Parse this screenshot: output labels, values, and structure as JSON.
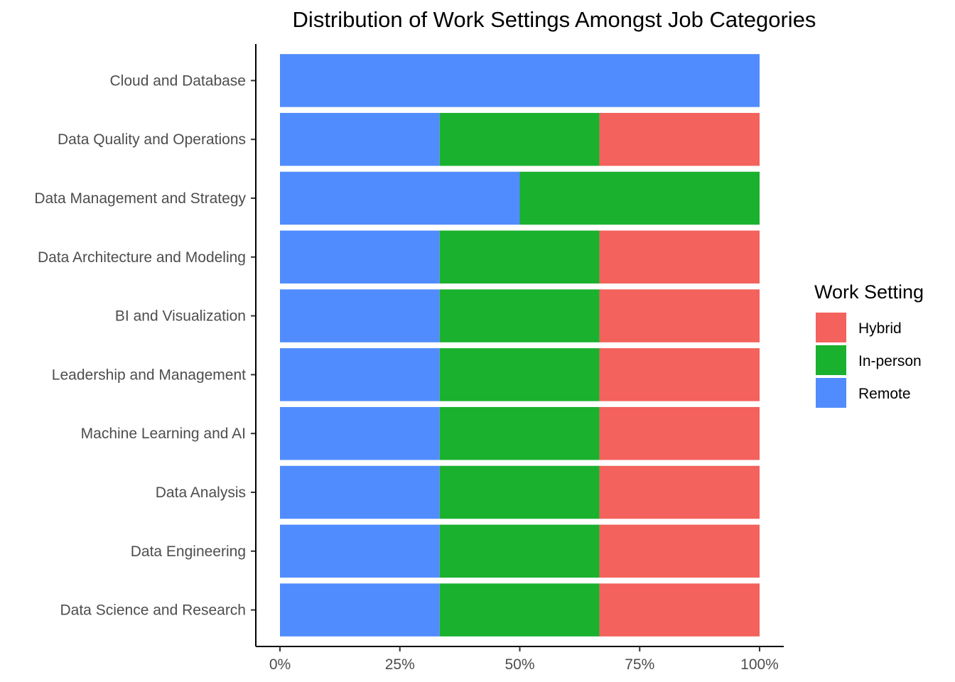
{
  "chart_data": {
    "type": "bar",
    "orientation": "horizontal",
    "stacked": "percent",
    "title": "Distribution of Work Settings Amongst Job Categories",
    "xlabel": "",
    "ylabel": "",
    "xlim": [
      0,
      100
    ],
    "x_ticks": [
      "0%",
      "25%",
      "50%",
      "75%",
      "100%"
    ],
    "x_tick_values": [
      0,
      25,
      50,
      75,
      100
    ],
    "categories": [
      "Cloud and Database",
      "Data Quality and Operations",
      "Data Management and Strategy",
      "Data Architecture and Modeling",
      "BI and Visualization",
      "Leadership and Management",
      "Machine Learning and AI",
      "Data Analysis",
      "Data Engineering",
      "Data Science and Research"
    ],
    "series": [
      {
        "name": "Remote",
        "color": "#518cfe",
        "values": [
          100,
          33.3,
          50,
          33.3,
          33.3,
          33.3,
          33.3,
          33.3,
          33.3,
          33.3
        ]
      },
      {
        "name": "In-person",
        "color": "#1ab12f",
        "values": [
          0,
          33.3,
          50,
          33.3,
          33.3,
          33.3,
          33.3,
          33.3,
          33.3,
          33.3
        ]
      },
      {
        "name": "Hybrid",
        "color": "#f3625c",
        "values": [
          0,
          33.4,
          0,
          33.4,
          33.4,
          33.4,
          33.4,
          33.4,
          33.4,
          33.4
        ]
      }
    ],
    "legend": {
      "title": "Work Setting",
      "placement": "right",
      "order": [
        "Hybrid",
        "In-person",
        "Remote"
      ]
    },
    "grid": false
  }
}
